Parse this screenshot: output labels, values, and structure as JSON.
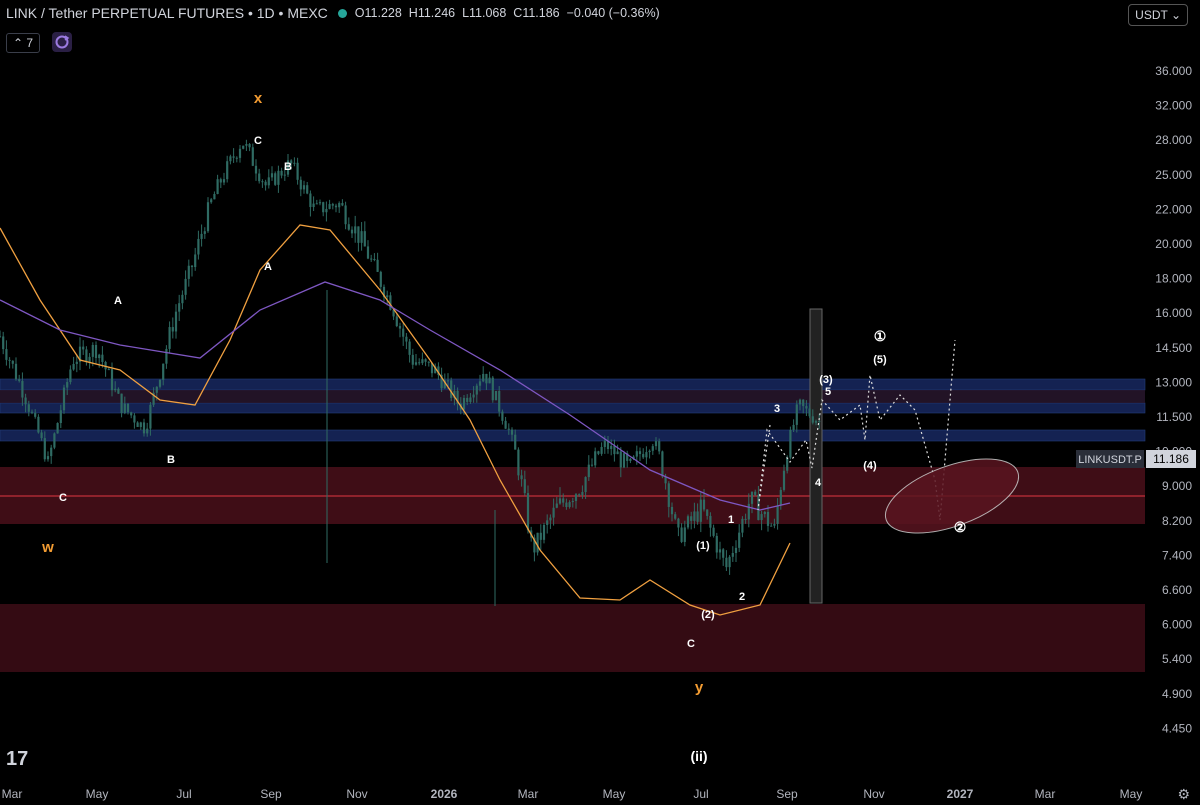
{
  "header": {
    "symbol_title": "LINK / Tether PERPETUAL FUTURES • 1D • MEXC",
    "ohlc": [
      {
        "k": "O",
        "v": "11.228"
      },
      {
        "k": "H",
        "v": "11.246"
      },
      {
        "k": "L",
        "v": "11.068"
      },
      {
        "k": "C",
        "v": "11.186"
      },
      {
        "k": "",
        "v": "−0.040 (−0.36%)"
      }
    ]
  },
  "toolbar": {
    "indicators_label": "⌃ 7",
    "currency": "USDT ⌄"
  },
  "logo": "17",
  "settings_icon": "⚙",
  "colors": {
    "candle": "#2f6b63",
    "orange_ma": "#f0a040",
    "purple_ma": "#7e57c2",
    "blue_zone": "#1b2e6e",
    "red_zone": "#4a0f1a",
    "price_badge": "#2a2e39",
    "white_label": "#ffffff",
    "orange_label": "#f39c32"
  },
  "chart_data": {
    "type": "line",
    "price_axis": [
      "36.000",
      "32.000",
      "28.000",
      "25.000",
      "22.000",
      "20.000",
      "18.000",
      "16.000",
      "14.500",
      "13.000",
      "11.500",
      "10.000",
      "9.000",
      "8.200",
      "7.400",
      "6.600",
      "6.000",
      "5.400",
      "4.900",
      "4.450"
    ],
    "time_axis": [
      "Mar",
      "May",
      "Jul",
      "Sep",
      "Nov",
      "2026",
      "Mar",
      "May",
      "Jul",
      "Sep",
      "Nov",
      "2027",
      "Mar",
      "May"
    ],
    "last_price": {
      "symbol": "LINKUSDT.P",
      "value": "11.186"
    },
    "price_path": [
      [
        0,
        15
      ],
      [
        1,
        12.5
      ],
      [
        2,
        9.6
      ],
      [
        3,
        14
      ],
      [
        4,
        14.5
      ],
      [
        5,
        12
      ],
      [
        6,
        11
      ],
      [
        7,
        15
      ],
      [
        8,
        19
      ],
      [
        9,
        24
      ],
      [
        10,
        28
      ],
      [
        11,
        24
      ],
      [
        12,
        26
      ],
      [
        13,
        22
      ],
      [
        14,
        22.5
      ],
      [
        15,
        20
      ],
      [
        16,
        17
      ],
      [
        17,
        14
      ],
      [
        18,
        13.5
      ],
      [
        19,
        12
      ],
      [
        20,
        13.5
      ],
      [
        21,
        11
      ],
      [
        22,
        7.5
      ],
      [
        23,
        8.5
      ],
      [
        24,
        9
      ],
      [
        25,
        10.3
      ],
      [
        26,
        9.5
      ],
      [
        27,
        10.5
      ],
      [
        28,
        7.8
      ],
      [
        29,
        8.5
      ],
      [
        30,
        7.1
      ],
      [
        31,
        8.7
      ],
      [
        32,
        8
      ],
      [
        33,
        12
      ],
      [
        34,
        11.2
      ]
    ],
    "projection_path": [
      [
        34,
        11.2
      ],
      [
        35,
        10.9
      ],
      [
        36,
        12.8
      ],
      [
        37,
        11.5
      ],
      [
        38,
        14.4
      ],
      [
        39,
        12.5
      ],
      [
        40,
        13.5
      ],
      [
        41,
        10.8
      ],
      [
        42,
        9.2
      ],
      [
        43,
        16
      ]
    ],
    "labels_white": [
      "C",
      "B",
      "A",
      "A",
      "B",
      "C",
      "C",
      "1",
      "2",
      "3",
      "4",
      "5",
      "(1)",
      "(2)",
      "(3)",
      "(4)",
      "(5)",
      "①",
      "②",
      "(ii)"
    ],
    "labels_orange": [
      "x",
      "w",
      "y"
    ],
    "zones": {
      "blue_bands": [
        "14.500",
        "13.000",
        "11.500"
      ],
      "red_bands": [
        "10.000",
        "6.600"
      ]
    }
  }
}
